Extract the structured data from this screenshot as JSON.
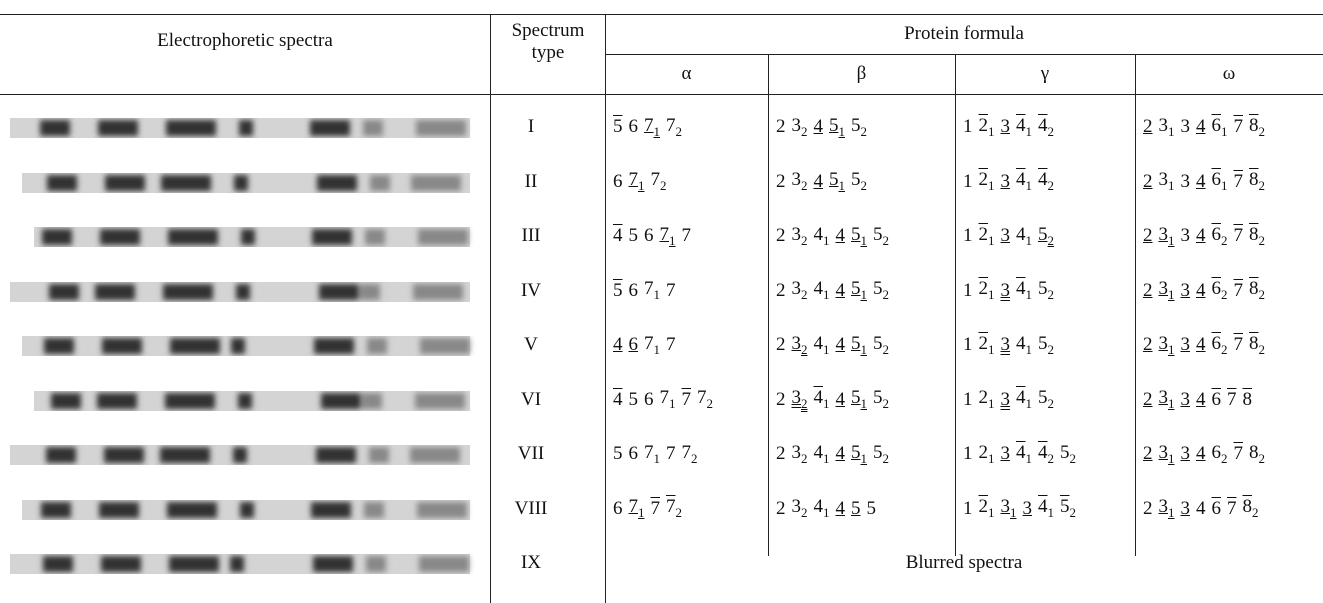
{
  "header": {
    "spectra": "Electrophoretic spectra",
    "type": "Spectrum type",
    "formula": "Protein formula",
    "alpha": "α",
    "beta": "β",
    "gamma": "γ",
    "omega": "ω"
  },
  "rows": [
    {
      "type": "I",
      "cells": [
        [
          {
            "n": "5",
            "o": 1
          },
          {
            "n": "6"
          },
          {
            "n": "7",
            "s": "1",
            "u": 1
          },
          {
            "n": "7",
            "s": "2"
          }
        ],
        [
          {
            "n": "2"
          },
          {
            "n": "3",
            "s": "2"
          },
          {
            "n": "4",
            "u": 1
          },
          {
            "n": "5",
            "s": "1",
            "u": 1
          },
          {
            "n": "5",
            "s": "2"
          }
        ],
        [
          {
            "n": "1"
          },
          {
            "n": "2",
            "s": "1",
            "o": 1
          },
          {
            "n": "3",
            "u": 1
          },
          {
            "n": "4",
            "s": "1",
            "o": 1
          },
          {
            "n": "4",
            "s": "2",
            "o": 1
          }
        ],
        [
          {
            "n": "2",
            "u": 1
          },
          {
            "n": "3",
            "s": "1"
          },
          {
            "n": "3"
          },
          {
            "n": "4",
            "u": 1
          },
          {
            "n": "6",
            "s": "1",
            "o": 1
          },
          {
            "n": "7",
            "o": 1
          },
          {
            "n": "8",
            "s": "2",
            "o": 1
          }
        ]
      ]
    },
    {
      "type": "II",
      "cells": [
        [
          {
            "n": "6"
          },
          {
            "n": "7",
            "s": "1",
            "u": 1
          },
          {
            "n": "7",
            "s": "2"
          }
        ],
        [
          {
            "n": "2"
          },
          {
            "n": "3",
            "s": "2"
          },
          {
            "n": "4",
            "u": 1
          },
          {
            "n": "5",
            "s": "1",
            "u": 1
          },
          {
            "n": "5",
            "s": "2"
          }
        ],
        [
          {
            "n": "1"
          },
          {
            "n": "2",
            "s": "1",
            "o": 1
          },
          {
            "n": "3",
            "u": 1
          },
          {
            "n": "4",
            "s": "1",
            "o": 1
          },
          {
            "n": "4",
            "s": "2",
            "o": 1
          }
        ],
        [
          {
            "n": "2",
            "u": 1
          },
          {
            "n": "3",
            "s": "1"
          },
          {
            "n": "3"
          },
          {
            "n": "4",
            "u": 1
          },
          {
            "n": "6",
            "s": "1",
            "o": 1
          },
          {
            "n": "7",
            "o": 1
          },
          {
            "n": "8",
            "s": "2",
            "o": 1
          }
        ]
      ]
    },
    {
      "type": "III",
      "cells": [
        [
          {
            "n": "4",
            "o": 1
          },
          {
            "n": "5"
          },
          {
            "n": "6"
          },
          {
            "n": "7",
            "s": "1",
            "u": 1
          },
          {
            "n": "7"
          }
        ],
        [
          {
            "n": "2"
          },
          {
            "n": "3",
            "s": "2"
          },
          {
            "n": "4",
            "s": "1"
          },
          {
            "n": "4",
            "u": 1
          },
          {
            "n": "5",
            "s": "1",
            "u": 1
          },
          {
            "n": "5",
            "s": "2"
          }
        ],
        [
          {
            "n": "1"
          },
          {
            "n": "2",
            "s": "1",
            "o": 1
          },
          {
            "n": "3",
            "u": 1
          },
          {
            "n": "4",
            "s": "1"
          },
          {
            "n": "5",
            "s": "2",
            "u": 1
          }
        ],
        [
          {
            "n": "2",
            "u": 1
          },
          {
            "n": "3",
            "s": "1",
            "u": 1
          },
          {
            "n": "3"
          },
          {
            "n": "4",
            "u": 1
          },
          {
            "n": "6",
            "s": "2",
            "o": 1
          },
          {
            "n": "7",
            "o": 1
          },
          {
            "n": "8",
            "s": "2",
            "o": 1
          }
        ]
      ]
    },
    {
      "type": "IV",
      "cells": [
        [
          {
            "n": "5",
            "o": 1
          },
          {
            "n": "6"
          },
          {
            "n": "7",
            "s": "1"
          },
          {
            "n": "7"
          }
        ],
        [
          {
            "n": "2"
          },
          {
            "n": "3",
            "s": "2"
          },
          {
            "n": "4",
            "s": "1"
          },
          {
            "n": "4",
            "u": 1
          },
          {
            "n": "5",
            "s": "1",
            "u": 1
          },
          {
            "n": "5",
            "s": "2"
          }
        ],
        [
          {
            "n": "1"
          },
          {
            "n": "2",
            "s": "1",
            "o": 1
          },
          {
            "n": "3",
            "u": 2
          },
          {
            "n": "4",
            "s": "1",
            "o": 1
          },
          {
            "n": "5",
            "s": "2"
          }
        ],
        [
          {
            "n": "2",
            "u": 1
          },
          {
            "n": "3",
            "s": "1",
            "u": 1
          },
          {
            "n": "3",
            "u": 1
          },
          {
            "n": "4",
            "u": 1
          },
          {
            "n": "6",
            "s": "2",
            "o": 1
          },
          {
            "n": "7",
            "o": 1
          },
          {
            "n": "8",
            "s": "2",
            "o": 1
          }
        ]
      ]
    },
    {
      "type": "V",
      "cells": [
        [
          {
            "n": "4",
            "u": 1
          },
          {
            "n": "6",
            "u": 1
          },
          {
            "n": "7",
            "s": "1"
          },
          {
            "n": "7"
          }
        ],
        [
          {
            "n": "2"
          },
          {
            "n": "3",
            "s": "2",
            "u": 1
          },
          {
            "n": "4",
            "s": "1"
          },
          {
            "n": "4",
            "u": 1
          },
          {
            "n": "5",
            "s": "1",
            "u": 1
          },
          {
            "n": "5",
            "s": "2"
          }
        ],
        [
          {
            "n": "1"
          },
          {
            "n": "2",
            "s": "1",
            "o": 1
          },
          {
            "n": "3",
            "u": 2
          },
          {
            "n": "4",
            "s": "1"
          },
          {
            "n": "5",
            "s": "2"
          }
        ],
        [
          {
            "n": "2",
            "u": 1
          },
          {
            "n": "3",
            "s": "1",
            "u": 1
          },
          {
            "n": "3",
            "u": 1
          },
          {
            "n": "4",
            "u": 1
          },
          {
            "n": "6",
            "s": "2",
            "o": 1
          },
          {
            "n": "7",
            "o": 1
          },
          {
            "n": "8",
            "s": "2",
            "o": 1
          }
        ]
      ]
    },
    {
      "type": "VI",
      "cells": [
        [
          {
            "n": "4",
            "o": 1
          },
          {
            "n": "5"
          },
          {
            "n": "6"
          },
          {
            "n": "7",
            "s": "1"
          },
          {
            "n": "7",
            "o": 1
          },
          {
            "n": "7",
            "s": "2"
          }
        ],
        [
          {
            "n": "2"
          },
          {
            "n": "3",
            "s": "2",
            "u": 2
          },
          {
            "n": "4",
            "s": "1",
            "o": 1
          },
          {
            "n": "4",
            "u": 1
          },
          {
            "n": "5",
            "s": "1",
            "u": 1
          },
          {
            "n": "5",
            "s": "2"
          }
        ],
        [
          {
            "n": "1"
          },
          {
            "n": "2",
            "s": "1"
          },
          {
            "n": "3",
            "u": 2
          },
          {
            "n": "4",
            "s": "1",
            "o": 1
          },
          {
            "n": "5",
            "s": "2"
          }
        ],
        [
          {
            "n": "2",
            "u": 1
          },
          {
            "n": "3",
            "s": "1",
            "u": 1
          },
          {
            "n": "3",
            "u": 1
          },
          {
            "n": "4",
            "u": 1
          },
          {
            "n": "6",
            "o": 1
          },
          {
            "n": "7",
            "o": 1
          },
          {
            "n": "8",
            "o": 1
          }
        ]
      ]
    },
    {
      "type": "VII",
      "cells": [
        [
          {
            "n": "5"
          },
          {
            "n": "6"
          },
          {
            "n": "7",
            "s": "1"
          },
          {
            "n": "7"
          },
          {
            "n": "7",
            "s": "2"
          }
        ],
        [
          {
            "n": "2"
          },
          {
            "n": "3",
            "s": "2"
          },
          {
            "n": "4",
            "s": "1"
          },
          {
            "n": "4",
            "u": 1
          },
          {
            "n": "5",
            "s": "1",
            "u": 1
          },
          {
            "n": "5",
            "s": "2"
          }
        ],
        [
          {
            "n": "1"
          },
          {
            "n": "2",
            "s": "1"
          },
          {
            "n": "3",
            "u": 1
          },
          {
            "n": "4",
            "s": "1",
            "o": 1
          },
          {
            "n": "4",
            "s": "2",
            "o": 1
          },
          {
            "n": "5",
            "s": "2"
          }
        ],
        [
          {
            "n": "2",
            "u": 1
          },
          {
            "n": "3",
            "s": "1",
            "u": 1
          },
          {
            "n": "3",
            "u": 1
          },
          {
            "n": "4",
            "u": 1
          },
          {
            "n": "6",
            "s": "2"
          },
          {
            "n": "7",
            "o": 1
          },
          {
            "n": "8",
            "s": "2"
          }
        ]
      ]
    },
    {
      "type": "VIII",
      "cells": [
        [
          {
            "n": "6"
          },
          {
            "n": "7",
            "s": "1",
            "u": 1
          },
          {
            "n": "7",
            "o": 1
          },
          {
            "n": "7",
            "s": "2",
            "o": 1
          }
        ],
        [
          {
            "n": "2"
          },
          {
            "n": "3",
            "s": "2"
          },
          {
            "n": "4",
            "s": "1"
          },
          {
            "n": "4",
            "u": 1
          },
          {
            "n": "5",
            "u": 1
          },
          {
            "n": "5"
          }
        ],
        [
          {
            "n": "1"
          },
          {
            "n": "2",
            "s": "1",
            "o": 1
          },
          {
            "n": "3",
            "s": "1",
            "u": 1
          },
          {
            "n": "3",
            "u": 1
          },
          {
            "n": "4",
            "s": "1",
            "o": 1
          },
          {
            "n": "5",
            "s": "2",
            "o": 1
          }
        ],
        [
          {
            "n": "2"
          },
          {
            "n": "3",
            "s": "1",
            "u": 1
          },
          {
            "n": "3",
            "u": 1
          },
          {
            "n": "4"
          },
          {
            "n": "6",
            "o": 1
          },
          {
            "n": "7",
            "o": 1
          },
          {
            "n": "8",
            "s": "2",
            "o": 1
          }
        ]
      ]
    }
  ],
  "last": {
    "type": "IX",
    "text": "Blurred spectra"
  }
}
